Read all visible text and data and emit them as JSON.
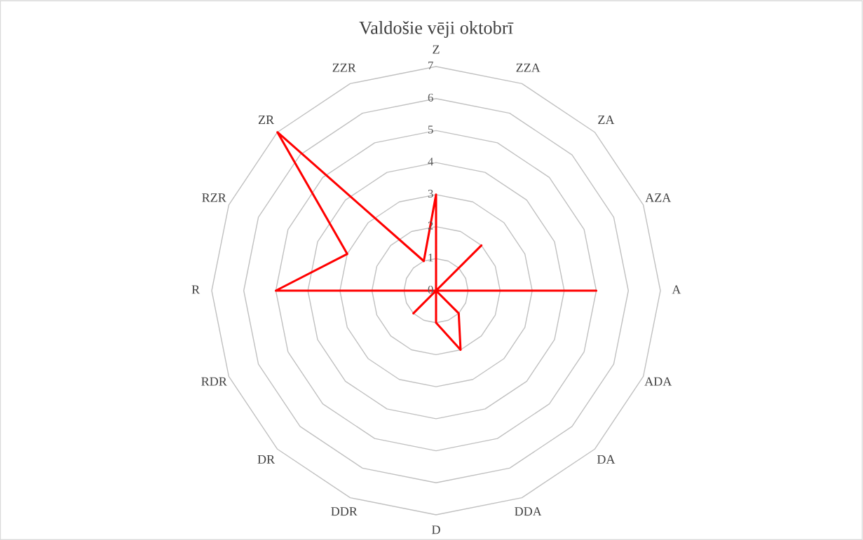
{
  "chart_data": {
    "type": "radar",
    "title": "Valdošie vēji oktobrī",
    "categories": [
      "Z",
      "ZZA",
      "ZA",
      "AZA",
      "A",
      "ADA",
      "DA",
      "DDA",
      "D",
      "DDR",
      "DR",
      "RDR",
      "R",
      "RZR",
      "ZR",
      "ZZR"
    ],
    "series": [
      {
        "color": "#ff0000",
        "values": [
          3,
          0,
          2,
          0,
          5,
          0,
          1,
          2,
          1,
          0,
          1,
          0,
          5,
          3,
          7,
          1
        ]
      }
    ],
    "ylim": [
      0,
      7
    ],
    "yticks": [
      0,
      1,
      2,
      3,
      4,
      5,
      6,
      7
    ],
    "grid": true,
    "marker": "none",
    "line_style": "solid"
  }
}
